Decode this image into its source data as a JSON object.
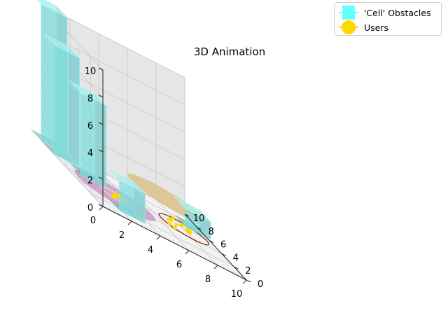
{
  "chart_data": {
    "type": "scatter",
    "projection": "3d",
    "title": "3D Animation",
    "xlim": [
      0,
      10
    ],
    "ylim": [
      0,
      10
    ],
    "zlim": [
      0,
      10
    ],
    "x_ticks": [
      "0",
      "2",
      "4",
      "6",
      "8",
      "10"
    ],
    "y_ticks": [
      "0",
      "2",
      "4",
      "6",
      "8",
      "10"
    ],
    "z_ticks": [
      "0",
      "2",
      "4",
      "6",
      "8",
      "10"
    ],
    "grid": true,
    "legend": {
      "placement": "top-right",
      "entries": [
        {
          "label": "'Cell' Obstacles",
          "color": "#66ffff",
          "marker": "square"
        },
        {
          "label": "Users",
          "color": "#ffd700",
          "marker": "circle"
        }
      ]
    },
    "obstacles": [
      {
        "x": 1.7,
        "y": 1.3,
        "z_top": 2.2,
        "color": "#7fdede"
      },
      {
        "x": 1.0,
        "y": 6.0,
        "z_top": 6.0,
        "color": "#7fdede"
      },
      {
        "x": 0.0,
        "y": 8.0,
        "z_top": 8.0,
        "color": "#7fdede"
      },
      {
        "x": 0.0,
        "y": 10.0,
        "z_top": 10.0,
        "color": "#7fdede"
      },
      {
        "x": 8.5,
        "y": 6.5,
        "z_top": 1.3,
        "color": "#7fdede"
      }
    ],
    "coverage_circles": [
      {
        "x": 3.0,
        "y": 5.0,
        "radius": 2.6,
        "style": "filled",
        "color": "#c79ec7"
      },
      {
        "x": 3.0,
        "y": 5.0,
        "radius": 0.9,
        "style": "outline",
        "color": "#f0e0a0"
      },
      {
        "x": 9.6,
        "y": 11.8,
        "radius": 2.6,
        "style": "filled",
        "color": "#dbbf8a"
      },
      {
        "x": 8.0,
        "y": 5.5,
        "radius": 1.6,
        "style": "outline",
        "color": "#8b1a00"
      }
    ],
    "users": [
      {
        "x": 2.6,
        "y": 4.4,
        "z": 0
      },
      {
        "x": 2.7,
        "y": 4.6,
        "z": 0
      },
      {
        "x": 2.9,
        "y": 4.8,
        "z": 0
      },
      {
        "x": 3.0,
        "y": 5.1,
        "z": 0
      },
      {
        "x": 3.3,
        "y": 5.2,
        "z": 0
      },
      {
        "x": 3.5,
        "y": 4.9,
        "z": 0
      },
      {
        "x": 3.6,
        "y": 5.4,
        "z": 0
      },
      {
        "x": 3.3,
        "y": 5.5,
        "z": 0
      },
      {
        "x": 6.8,
        "y": 5.0,
        "z": 0
      },
      {
        "x": 7.0,
        "y": 4.6,
        "z": 0
      },
      {
        "x": 7.2,
        "y": 6.1,
        "z": 0
      },
      {
        "x": 7.4,
        "y": 6.2,
        "z": 0
      },
      {
        "x": 7.5,
        "y": 5.6,
        "z": 0
      },
      {
        "x": 8.1,
        "y": 6.2,
        "z": 0
      },
      {
        "x": 8.2,
        "y": 5.4,
        "z": 0
      },
      {
        "x": 8.4,
        "y": 5.4,
        "z": 0
      },
      {
        "x": 8.4,
        "y": 5.9,
        "z": 0
      },
      {
        "x": 8.6,
        "y": 6.1,
        "z": 0
      },
      {
        "x": 8.5,
        "y": 6.8,
        "z": 0
      },
      {
        "x": 8.8,
        "y": 7.0,
        "z": 0
      },
      {
        "x": 8.0,
        "y": 7.2,
        "z": 0
      }
    ]
  }
}
